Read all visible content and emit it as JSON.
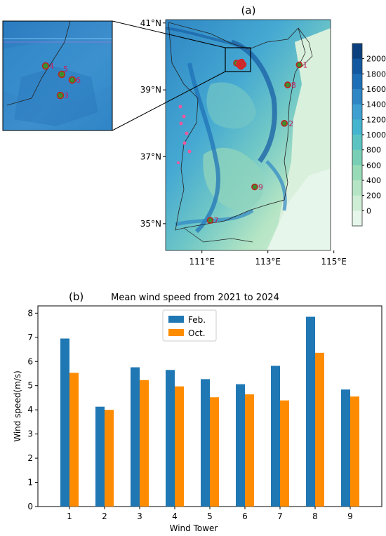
{
  "panel_a": {
    "label": "(a)",
    "lat_ticks": [
      {
        "value": 41,
        "text": "41°N"
      },
      {
        "value": 39,
        "text": "39°N"
      },
      {
        "value": 37,
        "text": "37°N"
      },
      {
        "value": 35,
        "text": "35°N"
      }
    ],
    "lon_ticks": [
      {
        "value": 111,
        "text": "111°E"
      },
      {
        "value": 113,
        "text": "113°E"
      },
      {
        "value": 115,
        "text": "115°E"
      }
    ],
    "lon_range": [
      109.9,
      114.9
    ],
    "lat_range": [
      34.2,
      41.1
    ],
    "colorbar_labels": [
      "2000",
      "1800",
      "1600",
      "1400",
      "1200",
      "1000",
      "800",
      "600",
      "400",
      "200",
      "0"
    ],
    "colorbar_colors": [
      "#0b3f7d",
      "#1258a0",
      "#1c6fb6",
      "#2f86c4",
      "#3f9fd0",
      "#45b5cf",
      "#5bc4c2",
      "#79cfb5",
      "#98dbb7",
      "#b5e5c4",
      "#cdeed4",
      "#e6f6ea"
    ],
    "towers": [
      {
        "id": "1",
        "lon": 113.95,
        "lat": 39.75
      },
      {
        "id": "2",
        "lon": 113.5,
        "lat": 38.0
      },
      {
        "id": "3",
        "lon": 112.18,
        "lat": 39.7
      },
      {
        "id": "4",
        "lon": 112.05,
        "lat": 39.8
      },
      {
        "id": "5",
        "lon": 112.2,
        "lat": 39.83
      },
      {
        "id": "6",
        "lon": 112.25,
        "lat": 39.76
      },
      {
        "id": "7",
        "lon": 111.25,
        "lat": 35.1
      },
      {
        "id": "8",
        "lon": 113.6,
        "lat": 39.15
      },
      {
        "id": "9",
        "lon": 112.6,
        "lat": 36.1
      }
    ],
    "inset_towers": [
      {
        "id": "4",
        "label": "4"
      },
      {
        "id": "5",
        "label": "5"
      },
      {
        "id": "6",
        "label": "6"
      },
      {
        "id": "3",
        "label": "3"
      }
    ]
  },
  "chart_data": {
    "type": "bar",
    "title": "Mean wind speed from 2021 to 2024",
    "panel_label": "(b)",
    "xlabel": "Wind Tower",
    "ylabel": "Wind speed(m/s)",
    "categories": [
      "1",
      "2",
      "3",
      "4",
      "5",
      "6",
      "7",
      "8",
      "9"
    ],
    "series": [
      {
        "name": "Feb.",
        "color": "#1f77b4",
        "values": [
          6.95,
          4.13,
          5.76,
          5.65,
          5.27,
          5.06,
          5.82,
          7.85,
          4.84
        ]
      },
      {
        "name": "Oct.",
        "color": "#ff8c00",
        "values": [
          5.53,
          4.0,
          5.23,
          4.97,
          4.52,
          4.64,
          4.39,
          6.36,
          4.55
        ]
      }
    ],
    "ylim": [
      0,
      8.3
    ],
    "yticks": [
      0,
      1,
      2,
      3,
      4,
      5,
      6,
      7,
      8
    ],
    "legend_position": "top-center",
    "grid": false
  }
}
